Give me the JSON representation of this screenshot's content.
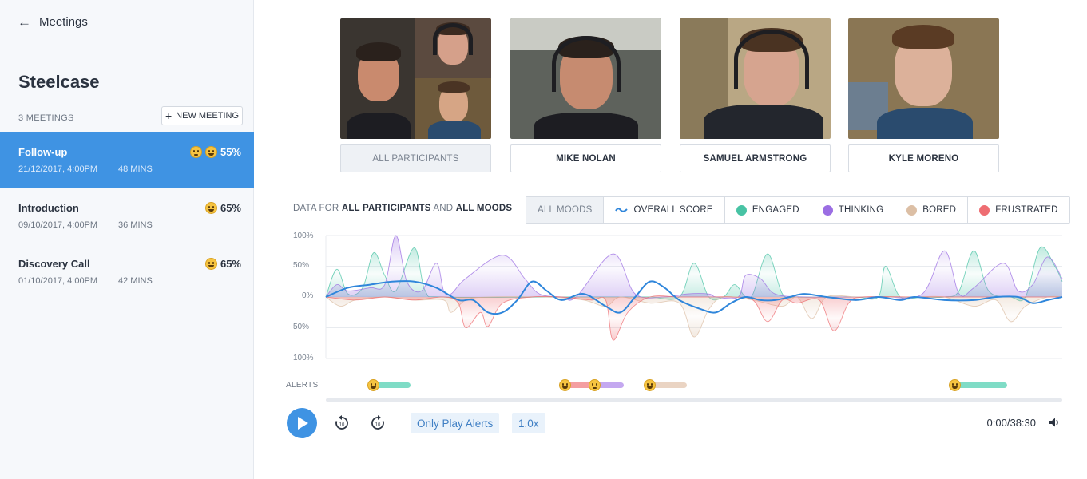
{
  "sidebar": {
    "back_label": "Meetings",
    "company": "Steelcase",
    "meeting_count": "3 MEETINGS",
    "new_meeting_label": "NEW MEETING",
    "meetings": [
      {
        "title": "Follow-up",
        "date": "21/12/2017, 4:00PM",
        "duration": "48 MINS",
        "score": "55%",
        "emojis": [
          "thinking-emoji",
          "grinning-emoji"
        ]
      },
      {
        "title": "Introduction",
        "date": "09/10/2017, 4:00PM",
        "duration": "36 MINS",
        "score": "65%",
        "emojis": [
          "grinning-emoji"
        ]
      },
      {
        "title": "Discovery Call",
        "date": "01/10/2017, 4:00PM",
        "duration": "42 MINS",
        "score": "65%",
        "emojis": [
          "grinning-emoji"
        ]
      }
    ]
  },
  "participants": [
    {
      "label": "ALL PARTICIPANTS",
      "selected": true
    },
    {
      "label": "MIKE NOLAN",
      "selected": false
    },
    {
      "label": "SAMUEL ARMSTRONG",
      "selected": false
    },
    {
      "label": "KYLE MORENO",
      "selected": false
    }
  ],
  "filter": {
    "prefix": "DATA FOR",
    "participants": "ALL PARTICIPANTS",
    "and": "AND",
    "moods": "ALL MOODS"
  },
  "moods": [
    {
      "label": "ALL MOODS",
      "selected": true
    },
    {
      "label": "OVERALL SCORE",
      "color": "#2f86db",
      "icon": "wave-icon"
    },
    {
      "label": "ENGAGED",
      "color": "#48c3a4"
    },
    {
      "label": "THINKING",
      "color": "#9b6ee3"
    },
    {
      "label": "BORED",
      "color": "#dcbfa5"
    },
    {
      "label": "FRUSTRATED",
      "color": "#ee6d72"
    }
  ],
  "chart_data": {
    "type": "line",
    "y_tick_labels": [
      "100%",
      "50%",
      "0%",
      "50%",
      "100%"
    ],
    "ylim": [
      -100,
      100
    ],
    "xlim": [
      0,
      100
    ],
    "series": [
      {
        "name": "ENGAGED",
        "color": "#48c3a4",
        "points": [
          [
            0,
            0
          ],
          [
            1.5,
            45
          ],
          [
            3,
            5
          ],
          [
            5,
            15
          ],
          [
            6.5,
            72
          ],
          [
            8,
            35
          ],
          [
            9.5,
            10
          ],
          [
            12,
            80
          ],
          [
            13.5,
            10
          ],
          [
            16,
            0
          ],
          [
            30,
            0
          ],
          [
            40,
            0
          ],
          [
            44,
            0
          ],
          [
            48,
            0
          ],
          [
            50,
            55
          ],
          [
            52,
            0
          ],
          [
            54,
            0
          ],
          [
            55.5,
            20
          ],
          [
            57,
            0
          ],
          [
            58,
            5
          ],
          [
            60,
            70
          ],
          [
            62,
            5
          ],
          [
            64,
            0
          ],
          [
            68,
            0
          ],
          [
            72,
            0
          ],
          [
            75,
            0
          ],
          [
            76,
            50
          ],
          [
            78,
            0
          ],
          [
            81,
            0
          ],
          [
            84,
            0
          ],
          [
            86,
            10
          ],
          [
            88,
            75
          ],
          [
            90,
            10
          ],
          [
            93,
            0
          ],
          [
            95,
            0
          ],
          [
            97,
            80
          ],
          [
            99,
            50
          ],
          [
            100,
            25
          ]
        ]
      },
      {
        "name": "THINKING",
        "color": "#9b6ee3",
        "points": [
          [
            0,
            0
          ],
          [
            1.5,
            20
          ],
          [
            3,
            10
          ],
          [
            6,
            15
          ],
          [
            8,
            20
          ],
          [
            9.5,
            100
          ],
          [
            11,
            25
          ],
          [
            13,
            10
          ],
          [
            15,
            55
          ],
          [
            16,
            10
          ],
          [
            17,
            5
          ],
          [
            19,
            30
          ],
          [
            24,
            68
          ],
          [
            27,
            30
          ],
          [
            29,
            5
          ],
          [
            32,
            0
          ],
          [
            34,
            0
          ],
          [
            39,
            70
          ],
          [
            42,
            5
          ],
          [
            46,
            0
          ],
          [
            49,
            5
          ],
          [
            52,
            5
          ],
          [
            53,
            0
          ],
          [
            56,
            0
          ],
          [
            57,
            35
          ],
          [
            59,
            30
          ],
          [
            61,
            5
          ],
          [
            65,
            0
          ],
          [
            69,
            0
          ],
          [
            72,
            0
          ],
          [
            76,
            0
          ],
          [
            81,
            5
          ],
          [
            84,
            75
          ],
          [
            86,
            5
          ],
          [
            88,
            15
          ],
          [
            92,
            55
          ],
          [
            94,
            10
          ],
          [
            96,
            20
          ],
          [
            98,
            65
          ],
          [
            100,
            30
          ]
        ]
      },
      {
        "name": "BORED",
        "color": "#dcbfa5",
        "points": [
          [
            0,
            0
          ],
          [
            2,
            -15
          ],
          [
            4,
            -5
          ],
          [
            8,
            0
          ],
          [
            12,
            -5
          ],
          [
            16,
            -5
          ],
          [
            17,
            -25
          ],
          [
            19,
            -5
          ],
          [
            22,
            0
          ],
          [
            30,
            0
          ],
          [
            35,
            -5
          ],
          [
            38,
            -15
          ],
          [
            40,
            0
          ],
          [
            44,
            -10
          ],
          [
            48,
            -10
          ],
          [
            50,
            -65
          ],
          [
            52,
            -20
          ],
          [
            54,
            0
          ],
          [
            58,
            -5
          ],
          [
            62,
            -15
          ],
          [
            64,
            0
          ],
          [
            66,
            -35
          ],
          [
            68,
            0
          ],
          [
            72,
            0
          ],
          [
            76,
            0
          ],
          [
            80,
            0
          ],
          [
            84,
            0
          ],
          [
            88,
            -15
          ],
          [
            91,
            -5
          ],
          [
            93,
            -40
          ],
          [
            95,
            -15
          ],
          [
            98,
            0
          ],
          [
            100,
            0
          ]
        ]
      },
      {
        "name": "FRUSTRATED",
        "color": "#ee6d72",
        "points": [
          [
            0,
            0
          ],
          [
            4,
            -5
          ],
          [
            8,
            0
          ],
          [
            12,
            -5
          ],
          [
            16,
            0
          ],
          [
            18,
            -10
          ],
          [
            19,
            -50
          ],
          [
            21,
            -25
          ],
          [
            22,
            -48
          ],
          [
            24,
            -10
          ],
          [
            28,
            0
          ],
          [
            32,
            0
          ],
          [
            36,
            -5
          ],
          [
            38,
            -5
          ],
          [
            39,
            -70
          ],
          [
            41,
            -25
          ],
          [
            44,
            0
          ],
          [
            48,
            0
          ],
          [
            52,
            0
          ],
          [
            55,
            0
          ],
          [
            58,
            -5
          ],
          [
            60,
            -40
          ],
          [
            62,
            -5
          ],
          [
            64,
            -10
          ],
          [
            67,
            -5
          ],
          [
            69,
            -55
          ],
          [
            71,
            -10
          ],
          [
            73,
            0
          ],
          [
            80,
            0
          ],
          [
            88,
            0
          ],
          [
            95,
            0
          ],
          [
            100,
            0
          ]
        ]
      },
      {
        "name": "OVERALL SCORE",
        "color": "#2f86db",
        "points": [
          [
            0,
            0
          ],
          [
            3,
            15
          ],
          [
            6,
            20
          ],
          [
            9,
            25
          ],
          [
            12,
            25
          ],
          [
            15,
            15
          ],
          [
            18,
            -5
          ],
          [
            20,
            -5
          ],
          [
            22,
            -25
          ],
          [
            24,
            -25
          ],
          [
            26,
            -5
          ],
          [
            28,
            25
          ],
          [
            30,
            10
          ],
          [
            32,
            -5
          ],
          [
            35,
            5
          ],
          [
            38,
            -15
          ],
          [
            40,
            -25
          ],
          [
            42,
            0
          ],
          [
            44,
            25
          ],
          [
            46,
            15
          ],
          [
            48,
            -5
          ],
          [
            51,
            -20
          ],
          [
            53,
            -25
          ],
          [
            55,
            -10
          ],
          [
            57,
            0
          ],
          [
            59,
            -5
          ],
          [
            61,
            -5
          ],
          [
            63,
            0
          ],
          [
            65,
            5
          ],
          [
            68,
            0
          ],
          [
            72,
            -5
          ],
          [
            75,
            0
          ],
          [
            78,
            -5
          ],
          [
            80,
            0
          ],
          [
            84,
            -5
          ],
          [
            88,
            -5
          ],
          [
            91,
            0
          ],
          [
            94,
            0
          ],
          [
            96,
            -10
          ],
          [
            98,
            -5
          ],
          [
            100,
            0
          ]
        ]
      }
    ]
  },
  "alerts": {
    "label": "ALERTS",
    "items": [
      {
        "emoji": "grinning-emoji",
        "start": 6.5,
        "end": 11.5,
        "color": "#7fdcc6"
      },
      {
        "emoji": "disappointed-emoji",
        "start": 32.5,
        "end": 36.5,
        "color": "#f49ea1"
      },
      {
        "emoji": "thinking-emoji",
        "start": 36.5,
        "end": 40.5,
        "color": "#c4a8f0"
      },
      {
        "emoji": "sleepy-emoji",
        "start": 44,
        "end": 49,
        "color": "#ead4c3"
      },
      {
        "emoji": "grinning-emoji",
        "start": 85.5,
        "end": 92.5,
        "color": "#7fdcc6"
      }
    ]
  },
  "controls": {
    "only_play_alerts": "Only Play Alerts",
    "speed": "1.0x",
    "rewind_seconds": "10",
    "forward_seconds": "10",
    "time": "0:00/38:30"
  }
}
